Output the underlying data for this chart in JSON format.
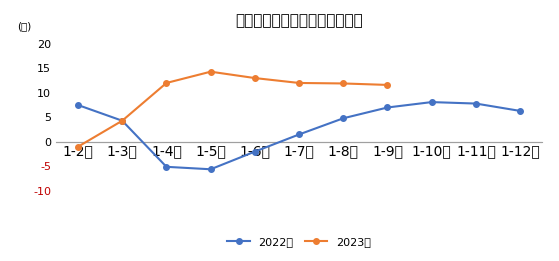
{
  "title": "汽车制造业工业增加値累計增速",
  "ylabel": "(％)",
  "categories": [
    "1-2月",
    "1-3月",
    "1-4月",
    "1-5月",
    "1-6月",
    "1-7月",
    "1-8月",
    "1-9月",
    "1-10月",
    "1-11月",
    "1-12月"
  ],
  "series_2022": [
    7.5,
    4.3,
    -5.1,
    -5.6,
    -2.0,
    1.5,
    4.8,
    7.0,
    8.1,
    7.8,
    6.3
  ],
  "series_2023": [
    -1.0,
    4.3,
    12.0,
    14.3,
    13.0,
    12.0,
    11.9,
    11.6,
    null,
    null,
    null
  ],
  "color_2022": "#4472c4",
  "color_2023": "#ed7d31",
  "ylim": [
    -11,
    22
  ],
  "yticks": [
    -10,
    -5,
    0,
    5,
    10,
    15,
    20
  ],
  "legend_2022": "2022年",
  "legend_2023": "2023年",
  "background_color": "#ffffff",
  "zero_line_color": "#a0a0a0",
  "neg_tick_color": "#c00000"
}
